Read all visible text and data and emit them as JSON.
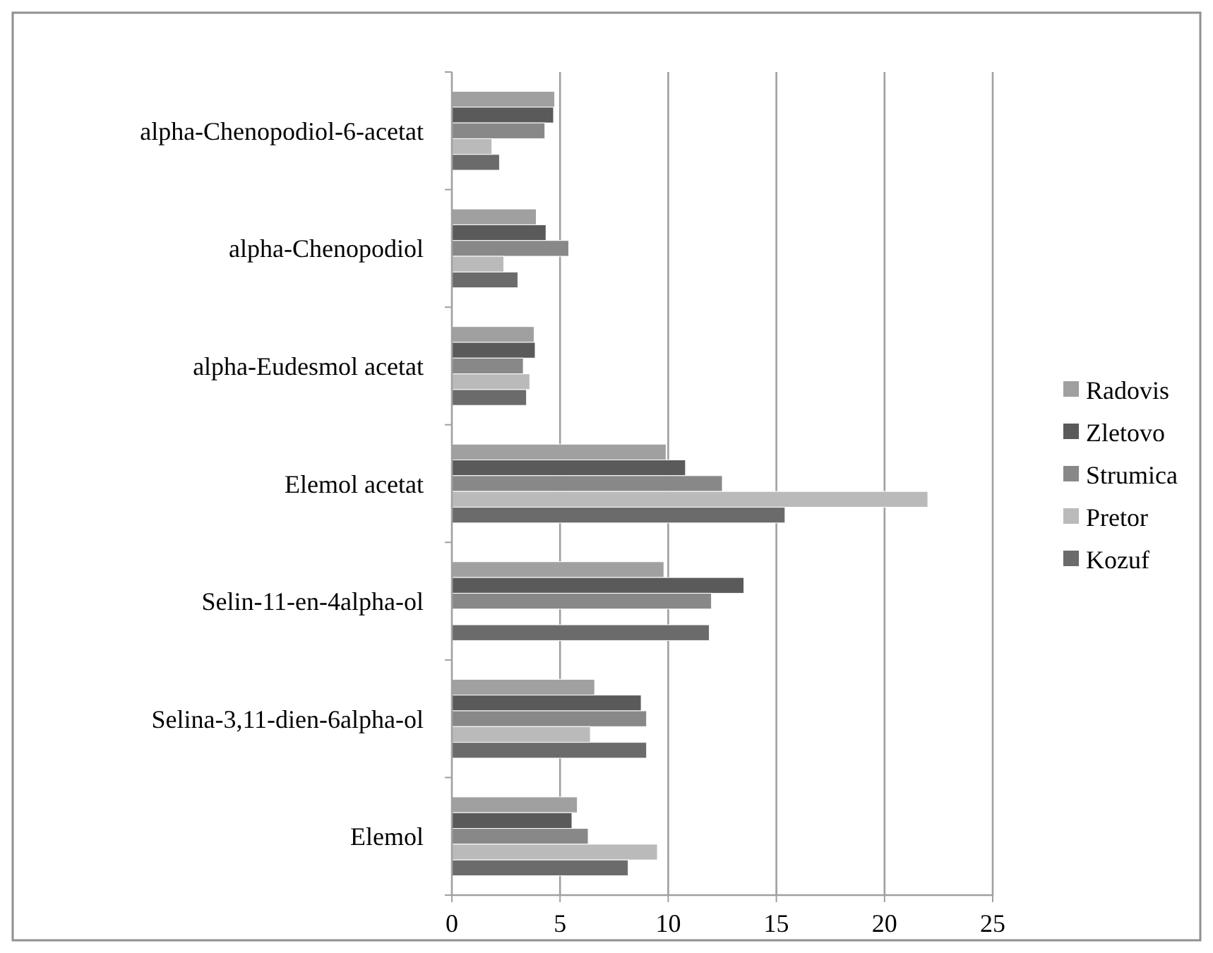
{
  "chart_data": {
    "type": "bar",
    "orientation": "horizontal",
    "categories": [
      "alpha-Chenopodiol-6-acetat",
      "alpha-Chenopodiol",
      "alpha-Eudesmol acetat",
      "Elemol acetat",
      "Selin-11-en-4alpha-ol",
      "Selina-3,11-dien-6alpha-ol",
      "Elemol"
    ],
    "series": [
      {
        "name": "Radovis",
        "color": "#a0a0a0",
        "values": [
          4.75,
          3.9,
          3.8,
          9.9,
          9.8,
          6.6,
          5.8
        ]
      },
      {
        "name": "Zletovo",
        "color": "#5a5a5a",
        "values": [
          4.7,
          4.35,
          3.85,
          10.8,
          13.5,
          8.75,
          5.55
        ]
      },
      {
        "name": "Strumica",
        "color": "#888888",
        "values": [
          4.3,
          5.4,
          3.3,
          12.5,
          12,
          9,
          6.3
        ]
      },
      {
        "name": "Pretor",
        "color": "#bababa",
        "values": [
          1.85,
          2.4,
          3.6,
          22,
          null,
          6.4,
          9.5
        ]
      },
      {
        "name": "Kozuf",
        "color": "#6b6b6b",
        "values": [
          2.2,
          3.05,
          3.45,
          15.4,
          11.9,
          9,
          8.15
        ]
      }
    ],
    "xlim": [
      0,
      25
    ],
    "xticks": [
      0,
      5,
      10,
      15,
      20,
      25
    ],
    "grid": "x",
    "legend": "right"
  }
}
